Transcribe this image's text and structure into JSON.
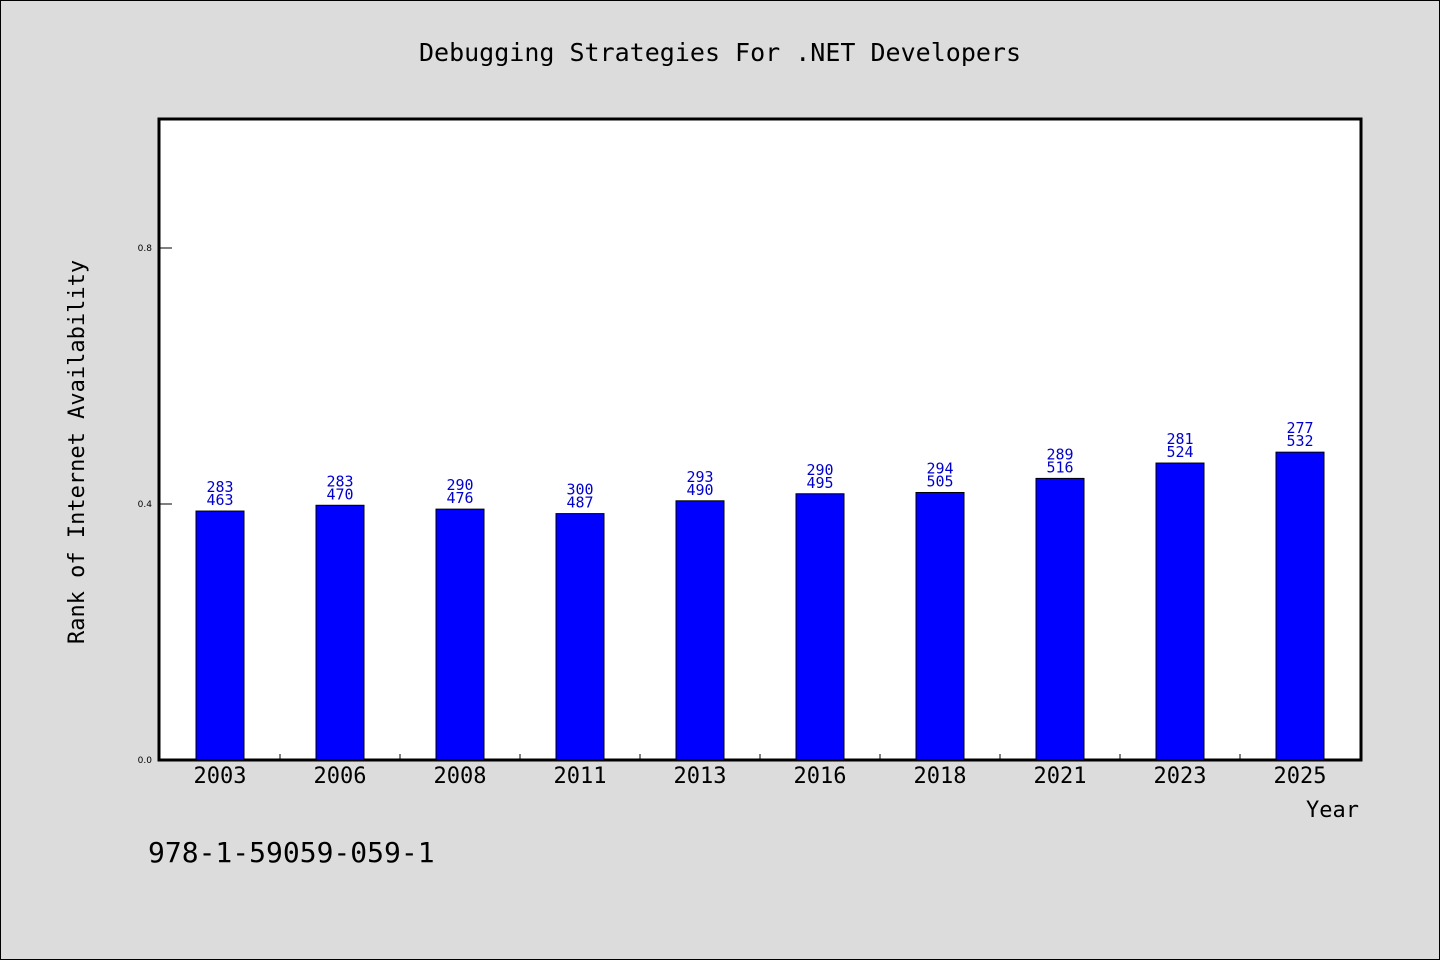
{
  "chart_data": {
    "type": "bar",
    "title": "Debugging Strategies For .NET Developers",
    "xlabel": "Year",
    "ylabel": "Rank of Internet Availability",
    "categories": [
      "2003",
      "2006",
      "2008",
      "2011",
      "2013",
      "2016",
      "2018",
      "2021",
      "2023",
      "2025"
    ],
    "values": [
      0.389,
      0.398,
      0.392,
      0.385,
      0.405,
      0.416,
      0.418,
      0.44,
      0.464,
      0.481
    ],
    "annotations_top": [
      "283",
      "283",
      "290",
      "300",
      "293",
      "290",
      "294",
      "289",
      "281",
      "277"
    ],
    "annotations_bottom": [
      "463",
      "470",
      "476",
      "487",
      "490",
      "495",
      "505",
      "516",
      "524",
      "532"
    ],
    "ylim": [
      0.0,
      1.0
    ],
    "yticks": [
      "0.0",
      "0.4",
      "0.8"
    ],
    "grid": false,
    "colors": {
      "bar": "#0000ff",
      "label": "#0000cc",
      "background": "#dcdcdc",
      "plot": "#ffffff"
    }
  },
  "footer": {
    "isbn": "978-1-59059-059-1"
  }
}
